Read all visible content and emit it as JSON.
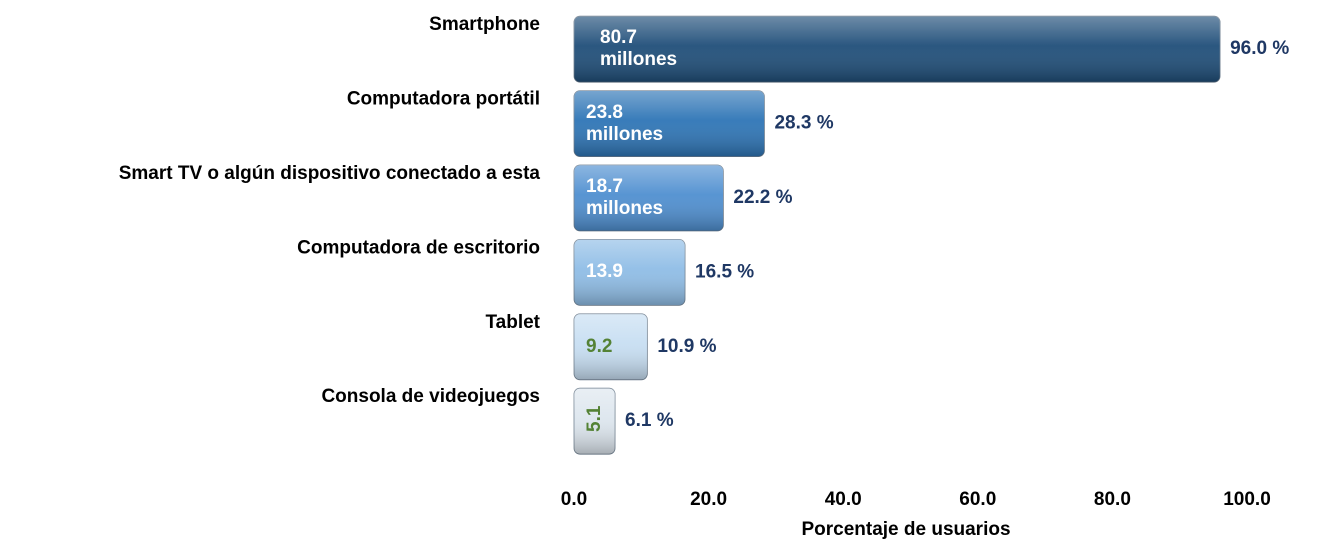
{
  "chart_data": {
    "type": "bar",
    "orientation": "horizontal",
    "categories": [
      "Smartphone",
      "Computadora portátil",
      "Smart TV o algún dispositivo conectado a esta",
      "Computadora de escritorio",
      "Tablet",
      "Consola de videojuegos"
    ],
    "values": [
      96.0,
      28.3,
      22.2,
      16.5,
      10.9,
      6.1
    ],
    "value_labels": [
      "96.0 %",
      "28.3 %",
      "22.2 %",
      "16.5 %",
      "10.9 %",
      "6.1 %"
    ],
    "user_labels": [
      "80.7 millones",
      "23.8 millones",
      "18.7 millones",
      "13.9",
      "9.2",
      "5.1"
    ],
    "colors": [
      "#1f4e79",
      "#2e75b6",
      "#4f8fd0",
      "#8fbde6",
      "#c7def2",
      "#dde6ee"
    ],
    "user_label_colors": [
      "#ffffff",
      "#ffffff",
      "#ffffff",
      "#ffffff",
      "#548235",
      "#548235"
    ],
    "value_label_color": "#1f3864",
    "xlim": [
      0,
      100
    ],
    "xticks": [
      {
        "value": 0,
        "label": "0.0"
      },
      {
        "value": 20,
        "label": "20.0"
      },
      {
        "value": 40,
        "label": "40.0"
      },
      {
        "value": 60,
        "label": "60.0"
      },
      {
        "value": 80,
        "label": "80.0"
      },
      {
        "value": 100,
        "label": "100.0"
      }
    ],
    "xlabel": "Porcentaje de usuarios",
    "grid": false
  }
}
